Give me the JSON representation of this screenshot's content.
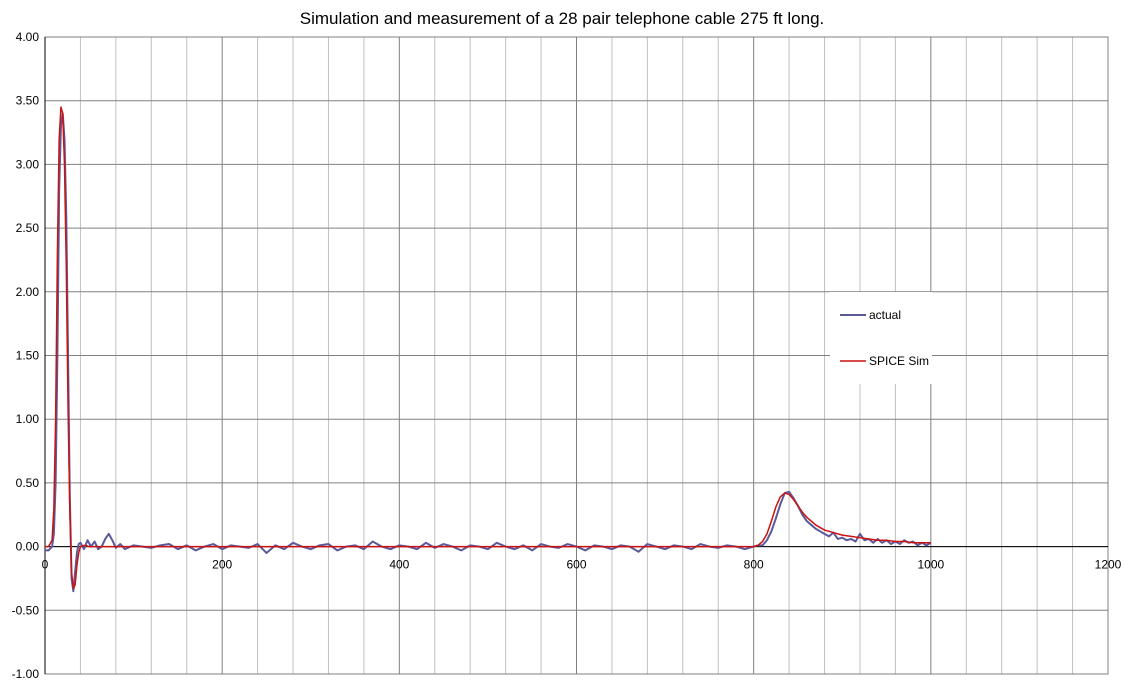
{
  "chart_data": {
    "type": "line",
    "title": "Simulation and measurement of a 28 pair telephone cable 275 ft long.",
    "xlabel": "",
    "ylabel": "",
    "xlim": [
      0,
      1200
    ],
    "ylim": [
      -1.0,
      4.0
    ],
    "x_major_ticks": [
      0,
      200,
      400,
      600,
      800,
      1000,
      1200
    ],
    "x_minor_step": 40,
    "y_ticks": [
      -1.0,
      -0.5,
      0.0,
      0.5,
      1.0,
      1.5,
      2.0,
      2.5,
      3.0,
      3.5,
      4.0
    ],
    "x_tick_labels": [
      "0",
      "200",
      "400",
      "600",
      "800",
      "1000",
      "1200"
    ],
    "y_tick_labels": [
      "-1.00",
      "-0.50",
      "0.00",
      "0.50",
      "1.00",
      "1.50",
      "2.00",
      "2.50",
      "3.00",
      "3.50",
      "4.00"
    ],
    "grid": true,
    "legend_position": "right",
    "series": [
      {
        "name": "actual",
        "color": "#5a5a9a",
        "x": [
          0,
          4,
          8,
          10,
          12,
          14,
          16,
          18,
          20,
          22,
          24,
          26,
          28,
          30,
          32,
          34,
          36,
          38,
          40,
          44,
          48,
          52,
          56,
          60,
          64,
          68,
          72,
          76,
          80,
          85,
          90,
          100,
          110,
          120,
          130,
          140,
          150,
          160,
          170,
          180,
          190,
          200,
          210,
          220,
          230,
          240,
          250,
          260,
          270,
          280,
          290,
          300,
          310,
          320,
          330,
          340,
          350,
          360,
          370,
          380,
          390,
          400,
          410,
          420,
          430,
          440,
          450,
          460,
          470,
          480,
          490,
          500,
          510,
          520,
          530,
          540,
          550,
          560,
          570,
          580,
          590,
          600,
          610,
          620,
          630,
          640,
          650,
          660,
          670,
          680,
          690,
          700,
          710,
          720,
          730,
          740,
          750,
          760,
          770,
          780,
          790,
          800,
          805,
          810,
          815,
          820,
          825,
          830,
          835,
          840,
          845,
          850,
          855,
          860,
          865,
          870,
          875,
          880,
          885,
          890,
          895,
          900,
          905,
          910,
          915,
          920,
          925,
          930,
          935,
          940,
          945,
          950,
          955,
          960,
          965,
          970,
          975,
          980,
          985,
          990,
          995,
          1000
        ],
        "y": [
          -0.03,
          -0.03,
          0.0,
          0.1,
          0.5,
          1.5,
          2.8,
          3.3,
          3.4,
          3.2,
          2.6,
          1.5,
          0.4,
          -0.25,
          -0.35,
          -0.2,
          -0.05,
          0.02,
          0.03,
          -0.02,
          0.05,
          0.0,
          0.04,
          -0.02,
          0.0,
          0.06,
          0.1,
          0.05,
          -0.01,
          0.02,
          -0.02,
          0.01,
          0.0,
          -0.01,
          0.01,
          0.02,
          -0.02,
          0.01,
          -0.03,
          0.0,
          0.02,
          -0.02,
          0.01,
          0.0,
          -0.01,
          0.02,
          -0.05,
          0.01,
          -0.02,
          0.03,
          0.0,
          -0.02,
          0.01,
          0.02,
          -0.03,
          0.0,
          0.01,
          -0.02,
          0.04,
          0.0,
          -0.02,
          0.01,
          0.0,
          -0.02,
          0.03,
          -0.01,
          0.02,
          0.0,
          -0.03,
          0.01,
          0.0,
          -0.02,
          0.03,
          0.0,
          -0.02,
          0.01,
          -0.03,
          0.02,
          0.0,
          -0.01,
          0.02,
          0.0,
          -0.03,
          0.01,
          0.0,
          -0.02,
          0.01,
          0.0,
          -0.04,
          0.02,
          0.0,
          -0.02,
          0.01,
          0.0,
          -0.02,
          0.02,
          0.0,
          -0.01,
          0.01,
          0.0,
          -0.02,
          0.0,
          0.01,
          0.01,
          0.05,
          0.12,
          0.22,
          0.33,
          0.42,
          0.43,
          0.38,
          0.32,
          0.25,
          0.2,
          0.17,
          0.14,
          0.12,
          0.1,
          0.08,
          0.11,
          0.06,
          0.07,
          0.05,
          0.06,
          0.04,
          0.1,
          0.05,
          0.06,
          0.03,
          0.06,
          0.03,
          0.05,
          0.02,
          0.04,
          0.02,
          0.05,
          0.03,
          0.04,
          0.01,
          0.03,
          0.01,
          0.03
        ]
      },
      {
        "name": "SPICE Sim",
        "color": "#cc1111",
        "x": [
          0,
          4,
          8,
          10,
          12,
          14,
          16,
          18,
          20,
          22,
          24,
          26,
          28,
          30,
          32,
          34,
          36,
          38,
          40,
          45,
          50,
          60,
          80,
          100,
          200,
          300,
          400,
          500,
          600,
          700,
          780,
          800,
          805,
          810,
          815,
          820,
          825,
          830,
          835,
          840,
          845,
          850,
          855,
          860,
          865,
          870,
          880,
          890,
          900,
          910,
          920,
          930,
          940,
          950,
          960,
          970,
          980,
          990,
          1000
        ],
        "y": [
          0.0,
          0.0,
          0.05,
          0.3,
          1.0,
          2.3,
          3.2,
          3.45,
          3.4,
          3.0,
          2.2,
          1.1,
          0.3,
          -0.2,
          -0.33,
          -0.3,
          -0.15,
          -0.05,
          0.0,
          0.01,
          0.0,
          0.0,
          0.0,
          0.0,
          0.0,
          0.0,
          0.0,
          0.0,
          0.0,
          0.0,
          0.0,
          0.0,
          0.01,
          0.04,
          0.1,
          0.2,
          0.31,
          0.39,
          0.42,
          0.41,
          0.37,
          0.32,
          0.27,
          0.23,
          0.2,
          0.17,
          0.13,
          0.11,
          0.09,
          0.08,
          0.07,
          0.06,
          0.05,
          0.05,
          0.04,
          0.04,
          0.03,
          0.03,
          0.03
        ]
      }
    ]
  }
}
